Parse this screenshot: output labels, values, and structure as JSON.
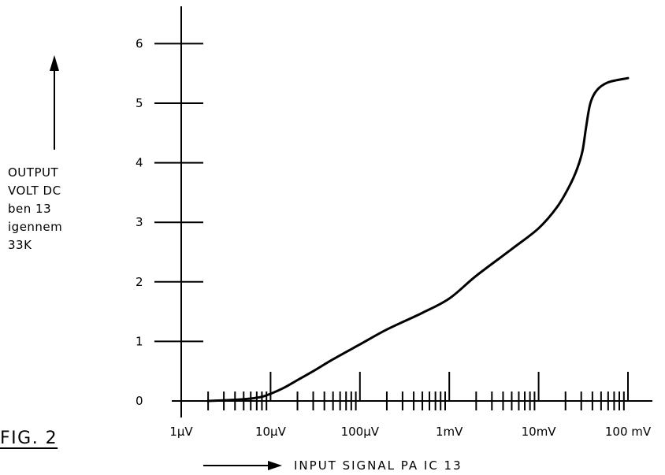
{
  "figure_label": "FIG. 2",
  "ylabel_lines": [
    "OUTPUT",
    "VOLT DC",
    "ben 13",
    "igennem",
    "33K"
  ],
  "xlabel": "INPUT SIGNAL PA IC 13",
  "chart_data": {
    "type": "line",
    "title": "",
    "xscale": "log",
    "xlabel": "INPUT SIGNAL PA IC 13",
    "ylabel": "OUTPUT VOLT DC ben 13 igennem 33K",
    "x_unit": "V",
    "xlim": [
      1e-06,
      0.1
    ],
    "ylim": [
      0,
      6
    ],
    "x_tick_labels": [
      "1μV",
      "10μV",
      "100μV",
      "1mV",
      "10mV",
      "100 mV"
    ],
    "x_tick_values": [
      1e-06,
      1e-05,
      0.0001,
      0.001,
      0.01,
      0.1
    ],
    "y_tick_labels": [
      "0",
      "1",
      "2",
      "3",
      "4",
      "5",
      "6"
    ],
    "y_tick_values": [
      0,
      1,
      2,
      3,
      4,
      5,
      6
    ],
    "grid": false,
    "series": [
      {
        "x": [
          2e-06,
          4e-06,
          6e-06,
          8e-06,
          1e-05,
          1.4e-05,
          2e-05,
          3e-05,
          5e-05,
          0.0001,
          0.0002,
          0.0005,
          0.001,
          0.002,
          0.005,
          0.01,
          0.016,
          0.022,
          0.027,
          0.031,
          0.034,
          0.038,
          0.045,
          0.06,
          0.1
        ],
        "y": [
          0.0,
          0.02,
          0.04,
          0.07,
          0.12,
          0.22,
          0.35,
          0.5,
          0.7,
          0.95,
          1.2,
          1.48,
          1.72,
          2.1,
          2.55,
          2.9,
          3.25,
          3.6,
          3.9,
          4.2,
          4.6,
          5.0,
          5.22,
          5.35,
          5.42
        ]
      }
    ]
  }
}
